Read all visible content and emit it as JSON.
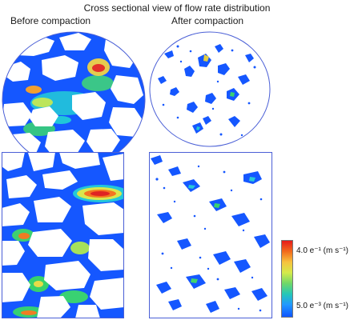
{
  "figure": {
    "title": "Cross sectional view of flow rate distribution",
    "before_label": "Before compaction",
    "after_label": "After compaction"
  },
  "legend": {
    "max_label": "4.0 e⁻¹ (m s⁻¹)",
    "min_label": "5.0 e⁻³ (m s⁻¹)"
  },
  "colors": {
    "border": "#4a5fd6",
    "pore_blue": "#1557ff",
    "mid_cyan": "#24c8d7",
    "mid_green": "#67d14e",
    "mid_yellow": "#e8e14a",
    "high_orange": "#f16f1d",
    "high_red": "#de2525",
    "grain_white": "#ffffff"
  }
}
